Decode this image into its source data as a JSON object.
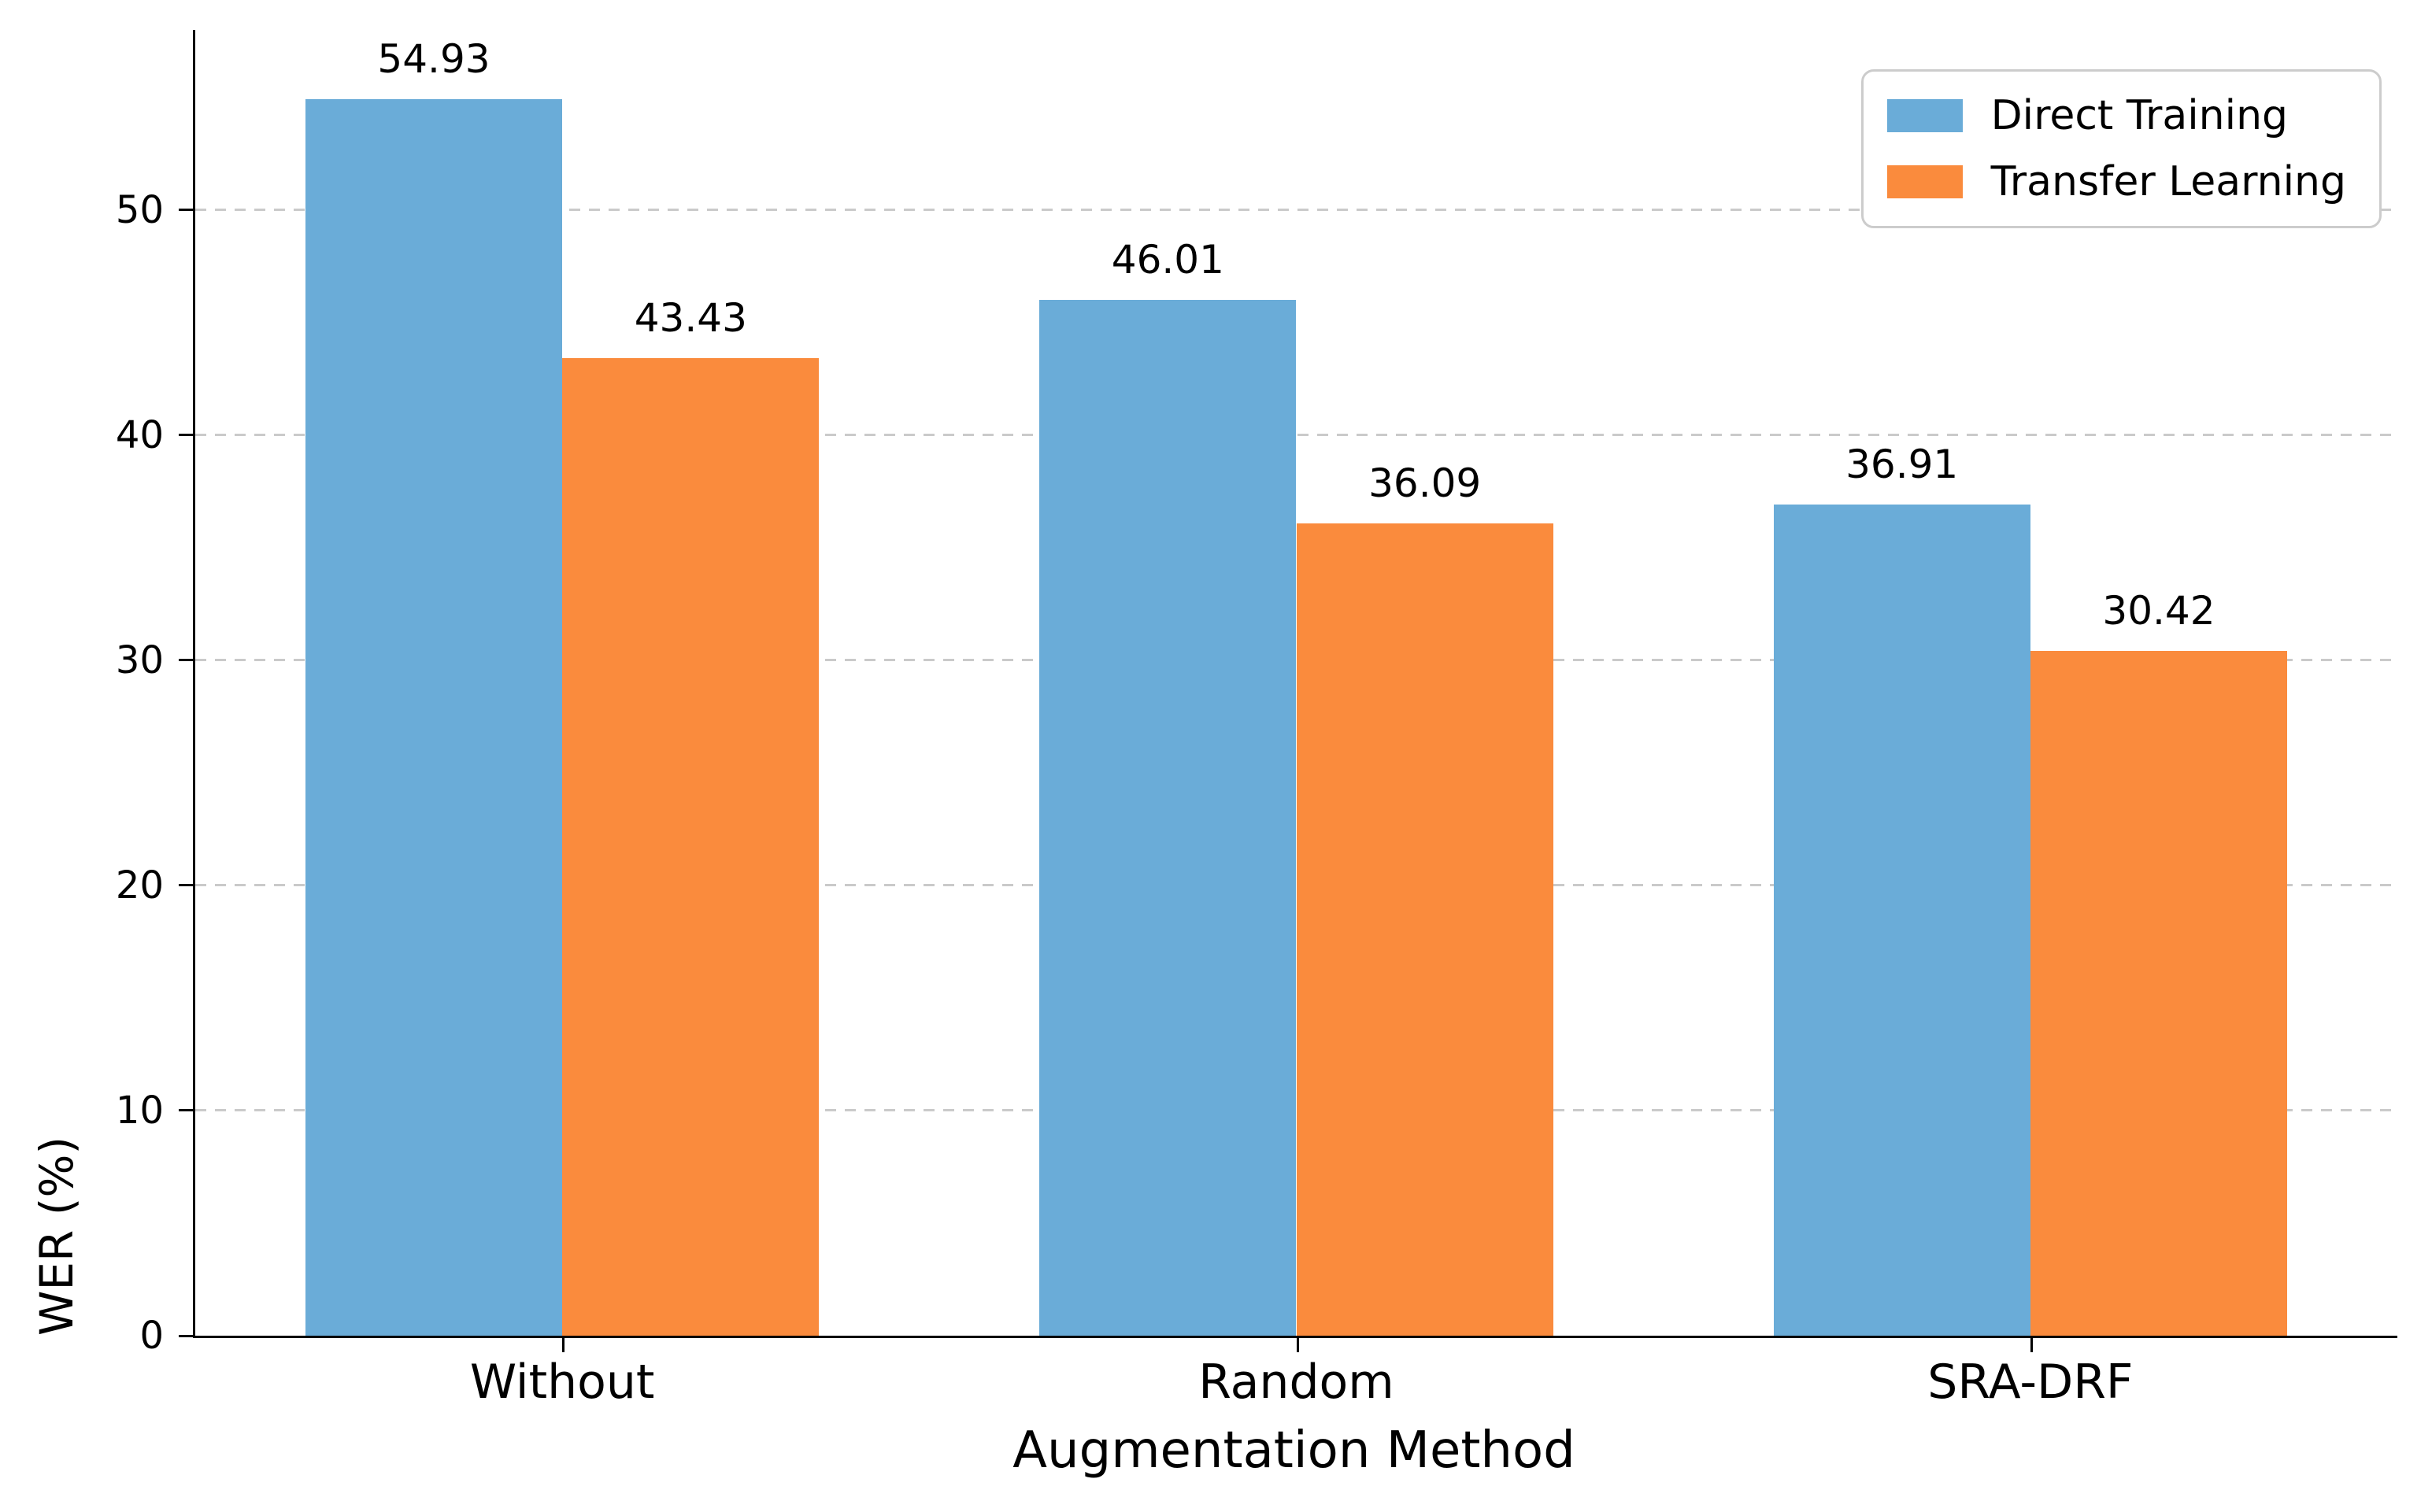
{
  "chart_data": {
    "type": "bar",
    "title": "",
    "xlabel": "Augmentation Method",
    "ylabel": "WER (%)",
    "categories": [
      "Without",
      "Random",
      "SRA-DRF"
    ],
    "series": [
      {
        "name": "Direct Training",
        "color": "#6aacd8",
        "values": [
          54.93,
          46.01,
          36.91
        ]
      },
      {
        "name": "Transfer Learning",
        "color": "#fa8b3d",
        "values": [
          43.43,
          36.09,
          30.42
        ]
      }
    ],
    "ylim": [
      0,
      58
    ],
    "yticks": [
      0,
      10,
      20,
      30,
      40,
      50
    ],
    "grid": {
      "axis": "y",
      "style": "dashed",
      "color": "#cacaca"
    },
    "legend": {
      "position": "upper-right"
    },
    "bar_width_fraction": 0.35,
    "value_label_decimals": 2
  }
}
